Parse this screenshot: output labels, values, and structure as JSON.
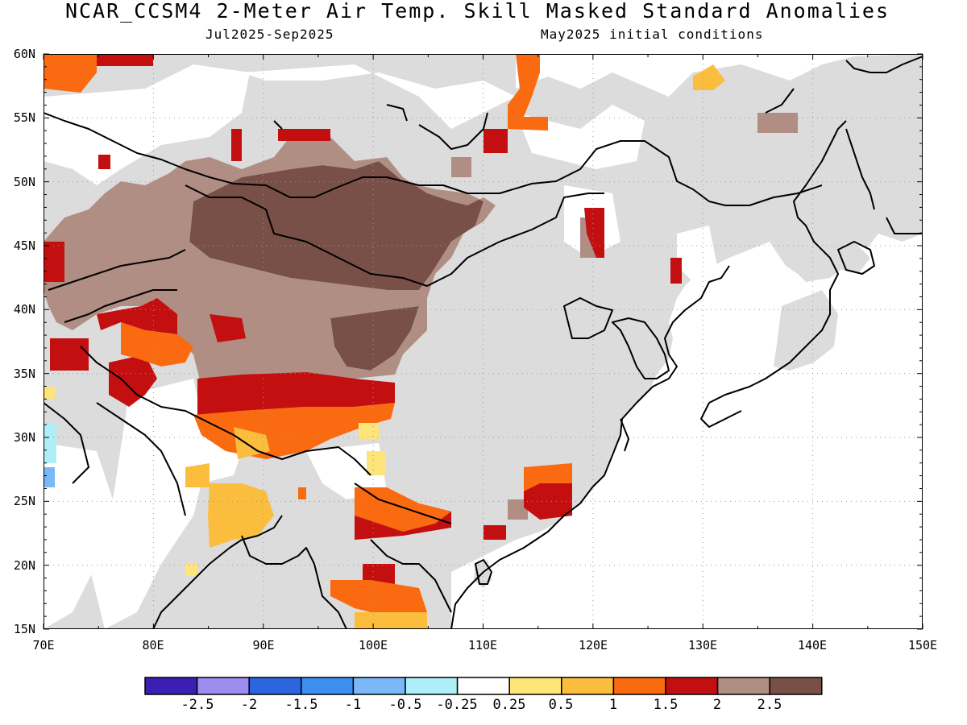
{
  "title": "NCAR_CCSM4 2-Meter Air Temp. Skill Masked Standard Anomalies",
  "period": "Jul2025-Sep2025",
  "init": "May2025 initial conditions",
  "axes": {
    "lon_labels": [
      "70E",
      "80E",
      "90E",
      "100E",
      "110E",
      "120E",
      "130E",
      "140E",
      "150E"
    ],
    "lat_labels": [
      "60N",
      "55N",
      "50N",
      "45N",
      "40N",
      "35N",
      "30N",
      "25N",
      "20N",
      "15N"
    ]
  },
  "colorbar": {
    "colors": [
      "#3b1fb3",
      "#9d8cf0",
      "#2b66e0",
      "#3d8ef0",
      "#7ab8f7",
      "#aeeef8",
      "#ffffff",
      "#fde57a",
      "#fbbd3e",
      "#fa6a10",
      "#c30f0f",
      "#b08e84",
      "#785048"
    ],
    "labels": [
      "-2.5",
      "-2",
      "-1.5",
      "-1",
      "-0.5",
      "-0.25",
      "0.25",
      "0.5",
      "1",
      "1.5",
      "2",
      "2.5"
    ]
  },
  "colors": {
    "land_no_skill": "#dcdcdc",
    "ocean": "#ffffff",
    "coastline": "#000000",
    "grid": "#999999"
  }
}
